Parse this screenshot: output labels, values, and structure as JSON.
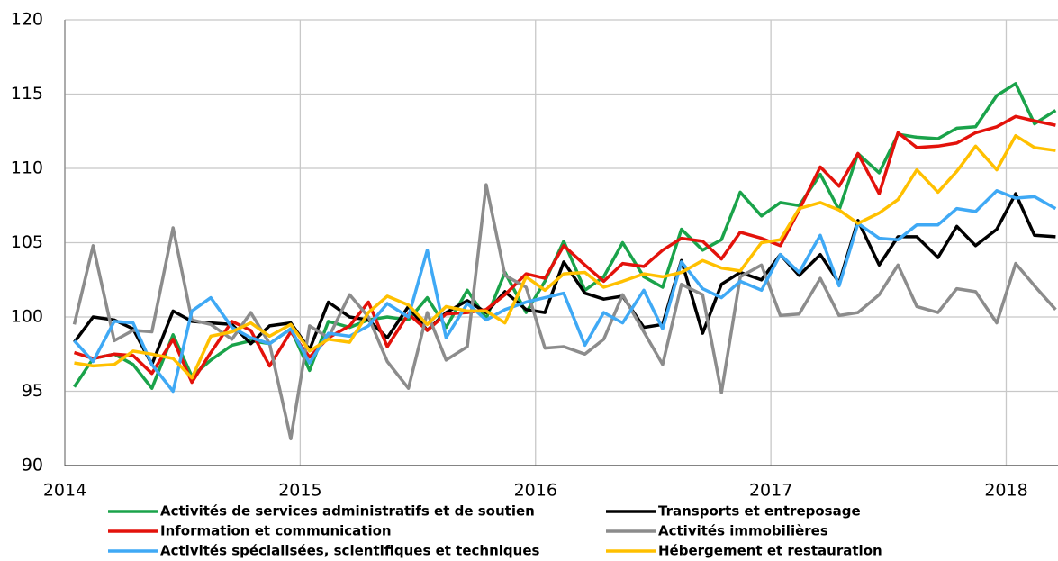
{
  "chart_data": {
    "type": "line",
    "x": [
      2014.04,
      2014.12,
      2014.21,
      2014.29,
      2014.37,
      2014.46,
      2014.54,
      2014.62,
      2014.71,
      2014.79,
      2014.87,
      2014.96,
      2015.04,
      2015.12,
      2015.21,
      2015.29,
      2015.37,
      2015.46,
      2015.54,
      2015.62,
      2015.71,
      2015.79,
      2015.87,
      2015.96,
      2016.04,
      2016.12,
      2016.21,
      2016.29,
      2016.37,
      2016.46,
      2016.54,
      2016.62,
      2016.71,
      2016.79,
      2016.87,
      2016.96,
      2017.04,
      2017.12,
      2017.21,
      2017.29,
      2017.37,
      2017.46,
      2017.54,
      2017.62,
      2017.71,
      2017.79,
      2017.87,
      2017.96,
      2018.04,
      2018.12,
      2018.21
    ],
    "xlim": [
      2014,
      2018.22
    ],
    "xticks": [
      2014,
      2015,
      2016,
      2017,
      2018
    ],
    "ylim": [
      90,
      120
    ],
    "yticks": [
      90,
      95,
      100,
      105,
      110,
      115,
      120
    ],
    "grid": true,
    "series": [
      {
        "name": "Activités de services administratifs et de soutien",
        "color": "#1aa34a",
        "values": [
          95.3,
          97.2,
          97.5,
          96.8,
          95.2,
          98.8,
          96.0,
          97.1,
          98.1,
          98.4,
          98.2,
          99.2,
          96.4,
          99.7,
          99.3,
          99.8,
          100.0,
          99.8,
          101.3,
          99.3,
          101.8,
          99.9,
          103.0,
          100.3,
          102.4,
          105.1,
          101.8,
          102.7,
          105.0,
          102.7,
          102.0,
          105.9,
          104.5,
          105.2,
          108.4,
          106.8,
          107.7,
          107.5,
          109.6,
          107.2,
          111.0,
          109.7,
          112.3,
          112.1,
          112.0,
          112.7,
          112.8,
          114.9,
          115.7,
          113.0,
          113.9
        ]
      },
      {
        "name": "Transports et entreposage",
        "color": "#000000",
        "values": [
          98.3,
          100.0,
          99.8,
          99.2,
          96.8,
          100.4,
          99.7,
          99.6,
          99.5,
          98.2,
          99.4,
          99.6,
          97.8,
          101.0,
          100.0,
          99.8,
          98.6,
          100.7,
          99.1,
          100.3,
          101.1,
          100.3,
          101.7,
          100.5,
          100.3,
          103.7,
          101.6,
          101.2,
          101.4,
          99.3,
          99.5,
          103.8,
          98.9,
          102.2,
          103.0,
          102.5,
          104.2,
          102.8,
          104.2,
          102.3,
          106.5,
          103.5,
          105.4,
          105.4,
          104.0,
          106.1,
          104.8,
          105.9,
          108.3,
          105.5,
          105.4
        ]
      },
      {
        "name": "Information et communication",
        "color": "#e3120b",
        "values": [
          97.6,
          97.2,
          97.5,
          97.4,
          96.2,
          98.5,
          95.6,
          97.6,
          99.7,
          99.1,
          96.7,
          99.0,
          97.3,
          98.6,
          99.4,
          101.0,
          98.0,
          100.2,
          99.1,
          100.2,
          100.3,
          100.5,
          101.5,
          102.9,
          102.6,
          104.8,
          103.5,
          102.4,
          103.6,
          103.4,
          104.5,
          105.3,
          105.1,
          103.9,
          105.7,
          105.3,
          104.8,
          107.2,
          110.1,
          108.8,
          111.0,
          108.3,
          112.4,
          111.4,
          111.5,
          111.7,
          112.4,
          112.8,
          113.5,
          113.2,
          112.9
        ]
      },
      {
        "name": "Activités immobilières",
        "color": "#8c8c8c",
        "values": [
          99.5,
          104.8,
          98.4,
          99.1,
          99.0,
          106.0,
          99.8,
          99.5,
          98.5,
          100.3,
          98.2,
          91.8,
          99.4,
          98.6,
          101.5,
          100.0,
          97.0,
          95.2,
          100.3,
          97.1,
          98.0,
          108.9,
          102.8,
          102.0,
          97.9,
          98.0,
          97.5,
          98.5,
          101.5,
          99.0,
          96.8,
          102.2,
          101.5,
          94.9,
          102.7,
          103.5,
          100.1,
          100.2,
          102.6,
          100.1,
          100.3,
          101.5,
          103.5,
          100.7,
          100.3,
          101.9,
          101.7,
          99.6,
          103.6,
          102.1,
          100.5
        ]
      },
      {
        "name": "Activités spécialisées, scientifiques et techniques",
        "color": "#3fa9f5",
        "values": [
          98.4,
          97.0,
          99.7,
          99.6,
          96.8,
          95.0,
          100.4,
          101.3,
          99.3,
          98.6,
          98.2,
          99.2,
          96.9,
          98.9,
          98.7,
          99.4,
          100.9,
          100.0,
          104.5,
          98.6,
          100.9,
          99.8,
          100.5,
          101.0,
          101.3,
          101.6,
          98.1,
          100.3,
          99.6,
          101.8,
          99.2,
          103.7,
          101.9,
          101.3,
          102.4,
          101.8,
          104.2,
          103.0,
          105.5,
          102.1,
          106.3,
          105.3,
          105.2,
          106.2,
          106.2,
          107.3,
          107.1,
          108.5,
          108.0,
          108.1,
          107.3
        ]
      },
      {
        "name": "Hébergement et restauration",
        "color": "#ffc000",
        "values": [
          96.9,
          96.7,
          96.8,
          97.7,
          97.5,
          97.2,
          95.9,
          98.7,
          99.0,
          99.6,
          98.7,
          99.5,
          97.7,
          98.5,
          98.3,
          100.3,
          101.4,
          100.8,
          99.5,
          100.7,
          100.4,
          100.4,
          99.6,
          102.7,
          101.8,
          102.9,
          103.0,
          102.0,
          102.4,
          102.9,
          102.7,
          103.0,
          103.8,
          103.3,
          103.1,
          105.0,
          105.2,
          107.3,
          107.7,
          107.2,
          106.3,
          107.0,
          107.9,
          109.9,
          108.4,
          109.8,
          111.5,
          109.9,
          112.2,
          111.4,
          111.2
        ]
      }
    ]
  }
}
